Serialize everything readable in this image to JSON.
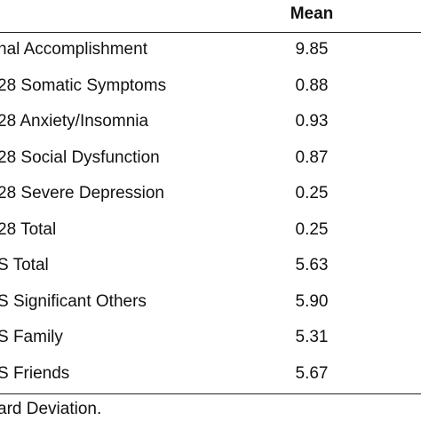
{
  "table": {
    "mean_header": "Mean",
    "rows": [
      [
        "nal Accomplishment",
        "9.85"
      ],
      [
        "28 Somatic Symptoms",
        "0.88"
      ],
      [
        "28 Anxiety/Insomnia",
        "0.93"
      ],
      [
        "28 Social Dysfunction",
        "0.87"
      ],
      [
        "28 Severe Depression",
        "0.25"
      ],
      [
        "28 Total",
        "0.25"
      ],
      [
        "S Total",
        "5.63"
      ],
      [
        "S Significant Others",
        "5.90"
      ],
      [
        "S Family",
        "5.31"
      ],
      [
        "S Friends",
        "5.67"
      ]
    ]
  },
  "footnote": "ard Deviation."
}
